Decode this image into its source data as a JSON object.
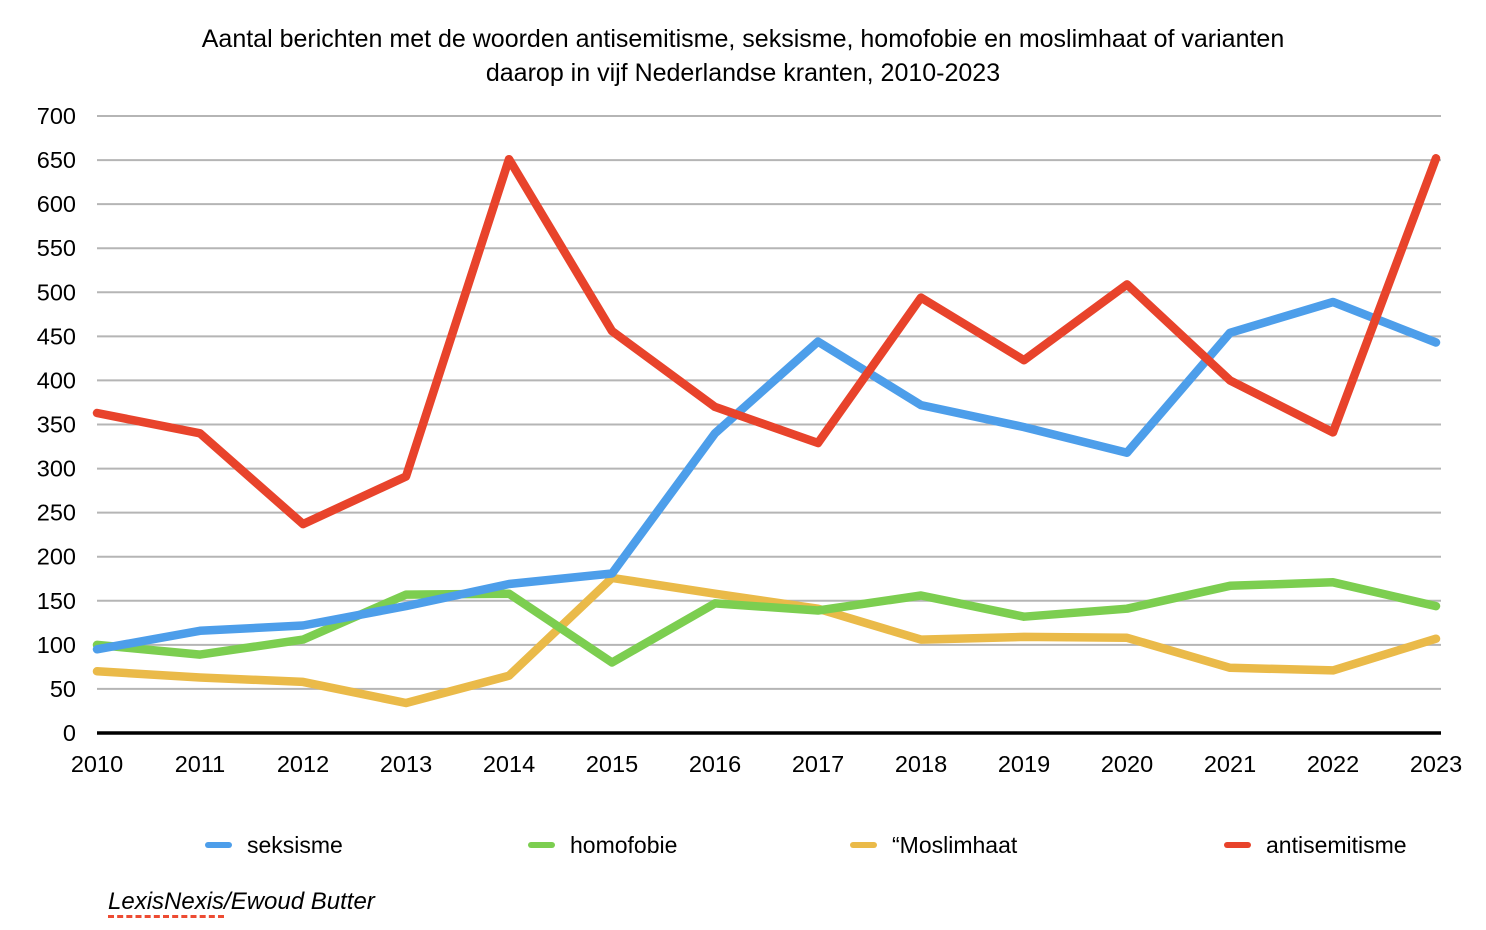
{
  "chart": {
    "title_lines": [
      "Aantal berichten met de woorden antisemitisme, seksisme, homofobie en moslimhaat of varianten",
      "daarop in vijf Nederlandse kranten, 2010-2023"
    ]
  },
  "chart_data": {
    "type": "line",
    "title": "Aantal berichten met de woorden antisemitisme, seksisme, homofobie en moslimhaat of varianten daarop in vijf Nederlandse kranten, 2010-2023",
    "categories": [
      "2010",
      "2011",
      "2012",
      "2013",
      "2014",
      "2015",
      "2016",
      "2017",
      "2018",
      "2019",
      "2020",
      "2021",
      "2022",
      "2023"
    ],
    "series": [
      {
        "name": "seksisme",
        "color": "#4D9EEA",
        "values": [
          95,
          116,
          122,
          144,
          169,
          181,
          340,
          444,
          372,
          347,
          318,
          454,
          489,
          443
        ]
      },
      {
        "name": "homofobie",
        "color": "#7CCE50",
        "values": [
          100,
          89,
          106,
          157,
          158,
          80,
          147,
          139,
          156,
          132,
          141,
          167,
          171,
          144
        ]
      },
      {
        "name": "“Moslimhaat",
        "color": "#EABA49",
        "values": [
          70,
          63,
          58,
          34,
          65,
          176,
          158,
          141,
          106,
          109,
          108,
          74,
          71,
          107
        ]
      },
      {
        "name": "antisemitisme",
        "color": "#E8432B",
        "values": [
          363,
          340,
          237,
          291,
          651,
          456,
          370,
          329,
          494,
          423,
          509,
          400,
          341,
          652
        ]
      }
    ],
    "draw_order": [
      2,
      1,
      0,
      3
    ],
    "xlabel": "",
    "ylabel": "",
    "ylim": [
      0,
      700
    ],
    "y_tick_step": 50,
    "yticks": [
      0,
      50,
      100,
      150,
      200,
      250,
      300,
      350,
      400,
      450,
      500,
      550,
      600,
      650,
      700
    ],
    "grid": true,
    "legend_position": "bottom"
  },
  "colors": {
    "gridline": "#B5B5B5",
    "axis": "#000000",
    "background": "#FFFFFF"
  },
  "source": {
    "underlined": "LexisNexis",
    "rest": "/Ewoud Butter"
  }
}
